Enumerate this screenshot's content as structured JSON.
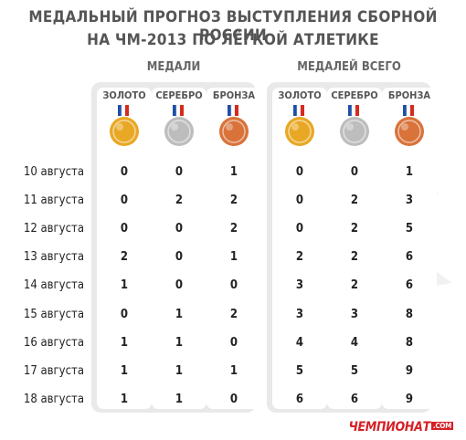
{
  "title": {
    "line1": "МЕДАЛЬНЫЙ ПРОГНОЗ ВЫСТУПЛЕНИЯ СБОРНОЙ РОССИИ",
    "line2": "НА ЧМ-2013 ПО ЛЁГКОЙ АТЛЕТИКЕ"
  },
  "groups": {
    "medals": "МЕДАЛИ",
    "total": "МЕДАЛЕЙ ВСЕГО"
  },
  "columns": [
    "ЗОЛОТО",
    "СЕРЕБРО",
    "БРОНЗА"
  ],
  "colors": {
    "gold": "#e8a825",
    "silver": "#bdbdbd",
    "bronze": "#d9733a",
    "logo": "#d61f26"
  },
  "rows": [
    {
      "date": "10 августа",
      "medals": [
        "0",
        "0",
        "1"
      ],
      "total": [
        "0",
        "0",
        "1"
      ]
    },
    {
      "date": "11 августа",
      "medals": [
        "0",
        "2",
        "2"
      ],
      "total": [
        "0",
        "2",
        "3"
      ]
    },
    {
      "date": "12 августа",
      "medals": [
        "0",
        "0",
        "2"
      ],
      "total": [
        "0",
        "2",
        "5"
      ]
    },
    {
      "date": "13 августа",
      "medals": [
        "2",
        "0",
        "1"
      ],
      "total": [
        "2",
        "2",
        "6"
      ]
    },
    {
      "date": "14 августа",
      "medals": [
        "1",
        "0",
        "0"
      ],
      "total": [
        "3",
        "2",
        "6"
      ]
    },
    {
      "date": "15 августа",
      "medals": [
        "0",
        "1",
        "2"
      ],
      "total": [
        "3",
        "3",
        "8"
      ]
    },
    {
      "date": "16 августа",
      "medals": [
        "1",
        "1",
        "0"
      ],
      "total": [
        "4",
        "4",
        "8"
      ]
    },
    {
      "date": "17 августа",
      "medals": [
        "1",
        "1",
        "1"
      ],
      "total": [
        "5",
        "5",
        "9"
      ]
    },
    {
      "date": "18 августа",
      "medals": [
        "1",
        "1",
        "0"
      ],
      "total": [
        "6",
        "6",
        "9"
      ]
    }
  ],
  "logo": {
    "name": "ЧЕМПИОНАТ",
    "domain": ".COM"
  }
}
